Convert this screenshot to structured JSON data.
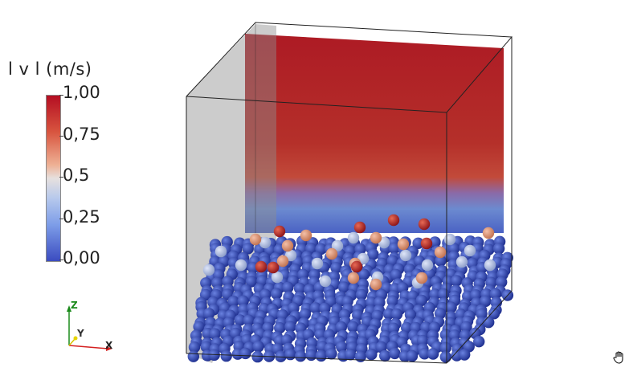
{
  "legend": {
    "title": "l v l (m/s)",
    "ticks": [
      "1,00",
      "0,75",
      "0,5",
      "0,25",
      "0,00"
    ],
    "colormap": {
      "high": "#b40e22",
      "mid": "#dddddd",
      "low": "#3b4cc0"
    }
  },
  "axes_widget": {
    "x": "X",
    "y": "Y",
    "z": "Z",
    "colors": {
      "x": "#d42020",
      "y": "#d6c400",
      "z": "#1a8a1a"
    }
  },
  "icons": {
    "cursor": "hand-icon"
  }
}
